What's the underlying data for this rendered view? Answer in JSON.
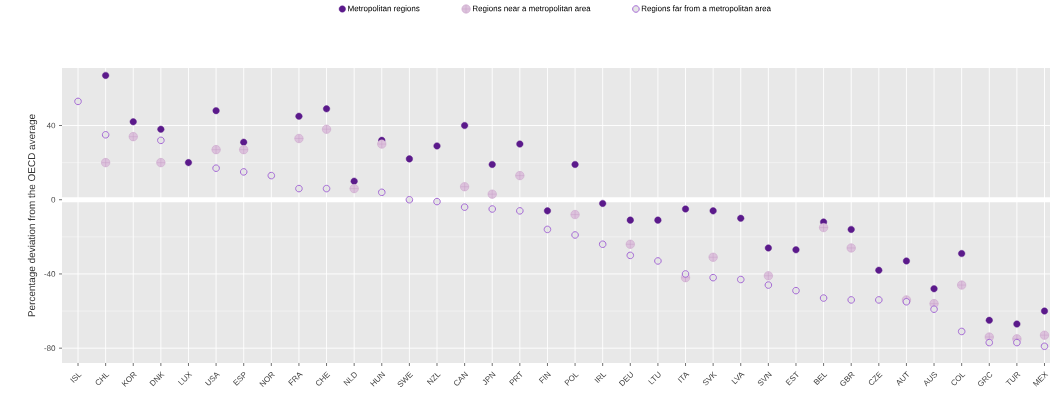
{
  "chart_data": {
    "type": "scatter",
    "ylabel": "Percentage deviation from the OECD average",
    "categories": [
      "ISL",
      "CHL",
      "KOR",
      "DNK",
      "LUX",
      "USA",
      "ESP",
      "NOR",
      "FRA",
      "CHE",
      "NLD",
      "HUN",
      "SWE",
      "NZL",
      "CAN",
      "JPN",
      "PRT",
      "FIN",
      "POL",
      "IRL",
      "DEU",
      "LTU",
      "ITA",
      "SVK",
      "LVA",
      "SVN",
      "EST",
      "BEL",
      "GBR",
      "CZE",
      "AUT",
      "AUS",
      "COL",
      "GRC",
      "TUR",
      "MEX"
    ],
    "series": [
      {
        "name": "Metropolitan regions",
        "color": "#5b1a8b",
        "marker": "circle",
        "values": [
          null,
          67,
          42,
          38,
          20,
          48,
          31,
          null,
          45,
          49,
          10,
          32,
          22,
          29,
          40,
          19,
          30,
          -6,
          19,
          -2,
          -11,
          -11,
          -5,
          -6,
          -10,
          -26,
          -27,
          -12,
          -16,
          -38,
          -33,
          -48,
          -29,
          -65,
          -67,
          -60
        ]
      },
      {
        "name": "Regions near a metropolitan area",
        "color": "#c49ac4",
        "marker": "cross",
        "values": [
          null,
          20,
          34,
          20,
          null,
          27,
          27,
          null,
          33,
          38,
          6,
          30,
          null,
          null,
          7,
          3,
          13,
          null,
          -8,
          null,
          -24,
          null,
          -42,
          -31,
          null,
          -41,
          null,
          -15,
          -26,
          null,
          -54,
          -56,
          -46,
          -74,
          -75,
          -73
        ]
      },
      {
        "name": "Regions far from a metropolitan area",
        "color": "#a468d4",
        "marker": "circle",
        "values": [
          53,
          35,
          null,
          32,
          null,
          17,
          15,
          13,
          6,
          6,
          null,
          4,
          0,
          -1,
          -4,
          -5,
          -6,
          -16,
          -19,
          -24,
          -30,
          -33,
          -40,
          -42,
          -43,
          -46,
          -49,
          -53,
          -54,
          -54,
          -55,
          -59,
          -71,
          -77,
          -77,
          -79
        ]
      }
    ],
    "ylim": [
      -88,
      71
    ],
    "yticks": [
      -80,
      -40,
      0,
      40
    ],
    "grid": true,
    "legend": "top",
    "ref_lines": [
      {
        "axis": "y",
        "value": 0,
        "color": "#ffffff"
      }
    ]
  }
}
